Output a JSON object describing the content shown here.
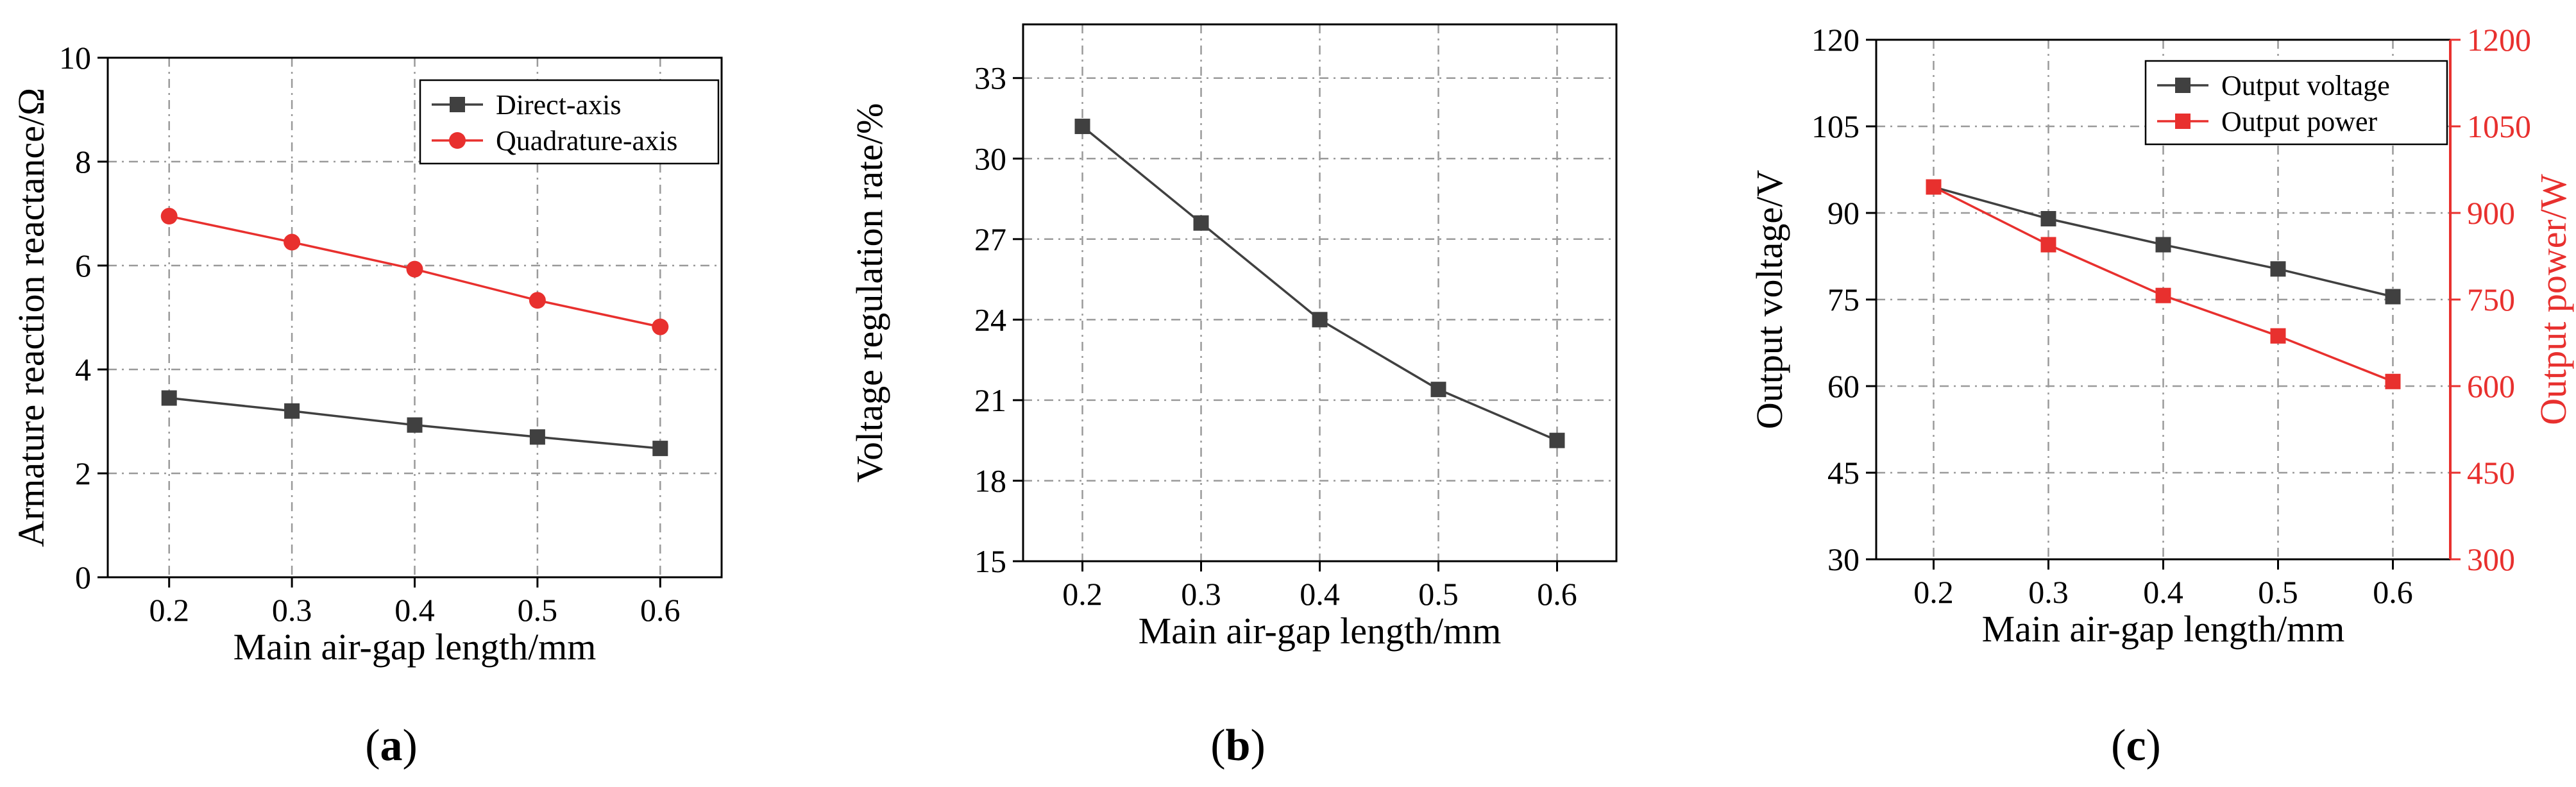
{
  "chart_data": [
    {
      "panel_label": "(a)",
      "type": "line",
      "xlabel": "Main air-gap length/mm",
      "ylabel": "Armature reaction reactance/Ω",
      "x": [
        0.2,
        0.3,
        0.4,
        0.5,
        0.6
      ],
      "xlim": [
        0.15,
        0.65
      ],
      "xticks": [
        "0.2",
        "0.3",
        "0.4",
        "0.5",
        "0.6"
      ],
      "ylim": [
        0,
        10
      ],
      "yticks": [
        "0",
        "2",
        "4",
        "6",
        "8",
        "10"
      ],
      "grid": true,
      "legend_position": "top-right",
      "series": [
        {
          "name": "Direct-axis",
          "marker": "square",
          "color": "#404040",
          "values": [
            3.45,
            3.2,
            2.93,
            2.7,
            2.48
          ]
        },
        {
          "name": "Quadrature-axis",
          "marker": "circle",
          "color": "#e8302e",
          "values": [
            6.95,
            6.45,
            5.93,
            5.33,
            4.82
          ]
        }
      ]
    },
    {
      "panel_label": "(b)",
      "type": "line",
      "xlabel": "Main air-gap length/mm",
      "ylabel": "Voltage regulation rate/%",
      "x": [
        0.2,
        0.3,
        0.4,
        0.5,
        0.6
      ],
      "xlim": [
        0.15,
        0.65
      ],
      "xticks": [
        "0.2",
        "0.3",
        "0.4",
        "0.5",
        "0.6"
      ],
      "ylim": [
        15,
        35
      ],
      "yticks": [
        "15",
        "18",
        "21",
        "24",
        "27",
        "30",
        "33"
      ],
      "grid": true,
      "series": [
        {
          "marker": "square",
          "color": "#404040",
          "values": [
            31.2,
            27.6,
            24.0,
            21.4,
            19.5
          ]
        }
      ]
    },
    {
      "panel_label": "(c)",
      "type": "line",
      "xlabel": "Main air-gap length/mm",
      "ylabel": "Output voltage/V",
      "y2label": "Output power/W",
      "x": [
        0.2,
        0.3,
        0.4,
        0.5,
        0.6
      ],
      "xlim": [
        0.15,
        0.65
      ],
      "xticks": [
        "0.2",
        "0.3",
        "0.4",
        "0.5",
        "0.6"
      ],
      "ylim": [
        30,
        120
      ],
      "yticks": [
        "30",
        "45",
        "60",
        "75",
        "90",
        "105",
        "120"
      ],
      "y2lim": [
        300,
        1200
      ],
      "y2ticks": [
        "300",
        "450",
        "600",
        "750",
        "900",
        "1050",
        "1200"
      ],
      "grid": true,
      "legend_position": "top-right",
      "series": [
        {
          "name": "Output voltage",
          "axis": "left",
          "marker": "square",
          "color": "#404040",
          "values": [
            94.5,
            89.0,
            84.5,
            80.3,
            75.5
          ]
        },
        {
          "name": "Output power",
          "axis": "right",
          "marker": "square",
          "color": "#e8302e",
          "values": [
            945,
            845,
            757,
            687,
            608
          ]
        }
      ]
    }
  ]
}
